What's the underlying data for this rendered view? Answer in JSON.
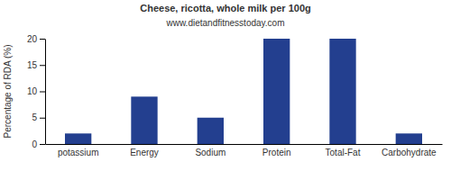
{
  "chart_data": {
    "type": "bar",
    "title": "Cheese, ricotta, whole milk per 100g",
    "subtitle": "www.dietandfitnesstoday.com",
    "y_label": "Percentage of RDA (%)",
    "categories": [
      "potassium",
      "Energy",
      "Sodium",
      "Protein",
      "Total-Fat",
      "Carbohydrate"
    ],
    "values": [
      2,
      9,
      5,
      20,
      20,
      2
    ],
    "color": "#233f8f",
    "ylim": [
      0,
      20
    ],
    "yticks": [
      0,
      5,
      10,
      15,
      20
    ],
    "grid": false
  }
}
